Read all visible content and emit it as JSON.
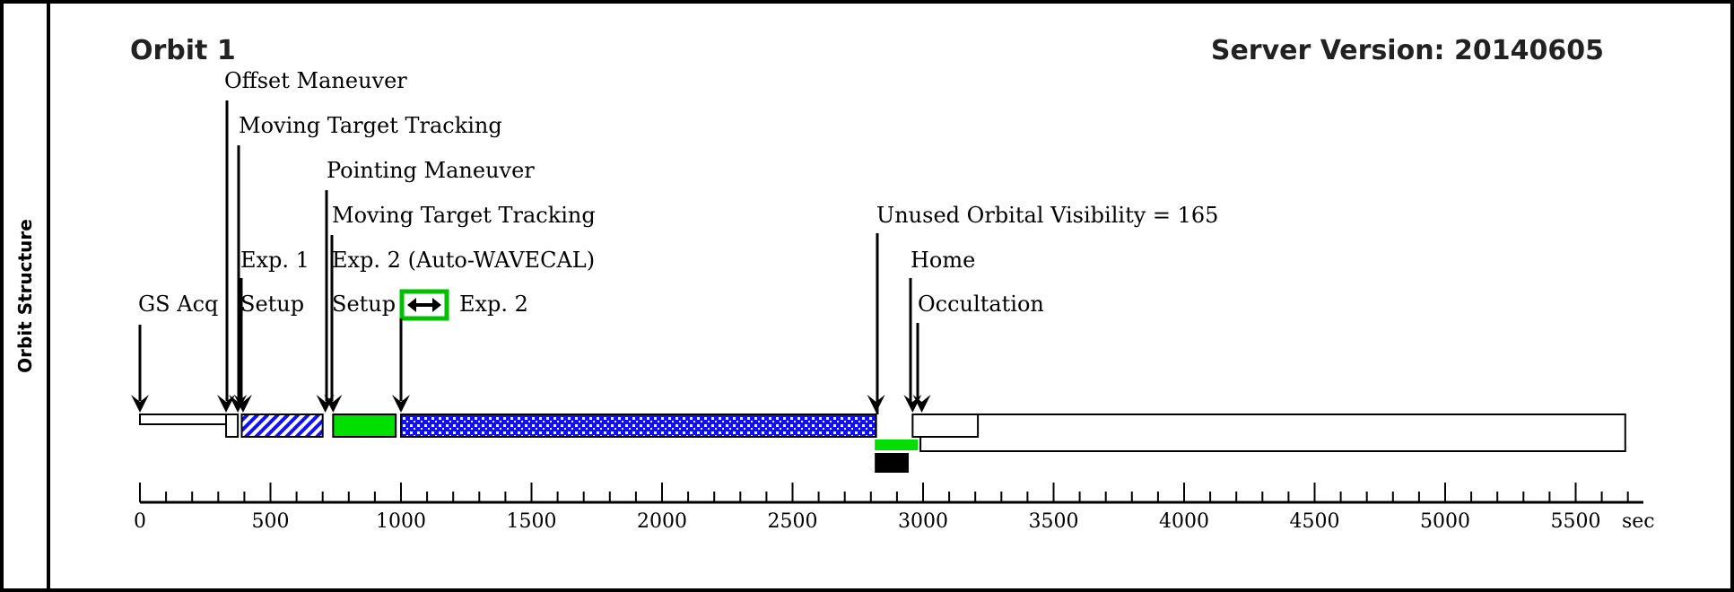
{
  "sidebar": {
    "label": "Orbit Structure"
  },
  "header": {
    "orbit_title": "Orbit 1",
    "server_version": "Server Version: 20140605"
  },
  "colors": {
    "green": "#00e000",
    "blue": "#1010ff",
    "outline": "#000000",
    "highlight_box": "#00c000",
    "black_bar": "#000000"
  },
  "labels": [
    "Offset Maneuver",
    "Moving Target Tracking",
    "Pointing Maneuver",
    "Moving Target Tracking",
    "Exp. 1",
    "Exp. 2 (Auto-WAVECAL)",
    "GS Acq",
    "Setup",
    "Setup",
    "Exp. 2",
    "Unused Orbital Visibility = 165",
    "Home",
    "Occultation"
  ],
  "highlight_icon": "double-arrow-icon",
  "chart_data": {
    "type": "timeline",
    "x_unit": "sec",
    "xlim": [
      0,
      5600
    ],
    "ticks": [
      "0",
      "500",
      "1000",
      "1500",
      "2000",
      "2500",
      "3000",
      "3500",
      "4000",
      "4500",
      "5000",
      "5500"
    ],
    "tick_values": [
      0,
      500,
      1000,
      1500,
      2000,
      2500,
      3000,
      3500,
      4000,
      4500,
      5000,
      5500
    ],
    "segments": [
      {
        "name": "GS Acq",
        "start": 0,
        "end": 330,
        "style": "white"
      },
      {
        "name": "Offset Maneuver",
        "start": 330,
        "end": 375,
        "style": "white"
      },
      {
        "name": "Exp. 1 Setup",
        "start": 390,
        "end": 700,
        "style": "blue-hatch"
      },
      {
        "name": "Exp. 1",
        "start": 740,
        "end": 980,
        "style": "green"
      },
      {
        "name": "Exp. 2",
        "start": 1000,
        "end": 2820,
        "style": "blue-dots"
      },
      {
        "name": "Unused Orbital Visibility",
        "start": 2815,
        "end": 2980,
        "style": "green"
      },
      {
        "name": "Occultation",
        "start": 2815,
        "end": 2945,
        "style": "black"
      },
      {
        "name": "Home",
        "start": 2960,
        "end": 3210,
        "style": "white"
      },
      {
        "name": "Occultation",
        "start": 2990,
        "end": 5690,
        "style": "white"
      }
    ],
    "arrows": [
      0,
      330,
      375,
      395,
      710,
      740,
      1000,
      2820,
      2960,
      2995
    ]
  }
}
